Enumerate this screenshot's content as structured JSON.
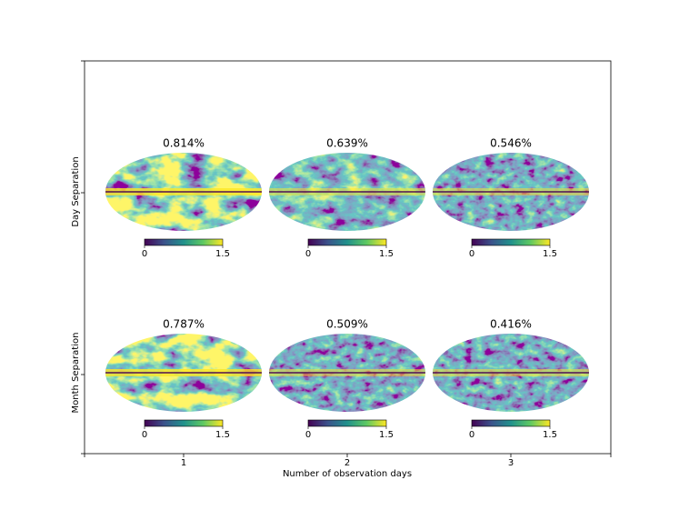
{
  "rows": [
    {
      "label": "Day Separation",
      "panels": [
        "0.814%",
        "0.639%",
        "0.546%"
      ]
    },
    {
      "label": "Month Separation",
      "panels": [
        "0.787%",
        "0.509%",
        "0.416%"
      ]
    }
  ],
  "colorbar_ticks": [
    0,
    1.5
  ],
  "x_axis": {
    "label": "Number of observation days",
    "ticks": [
      1,
      2,
      3
    ]
  }
}
